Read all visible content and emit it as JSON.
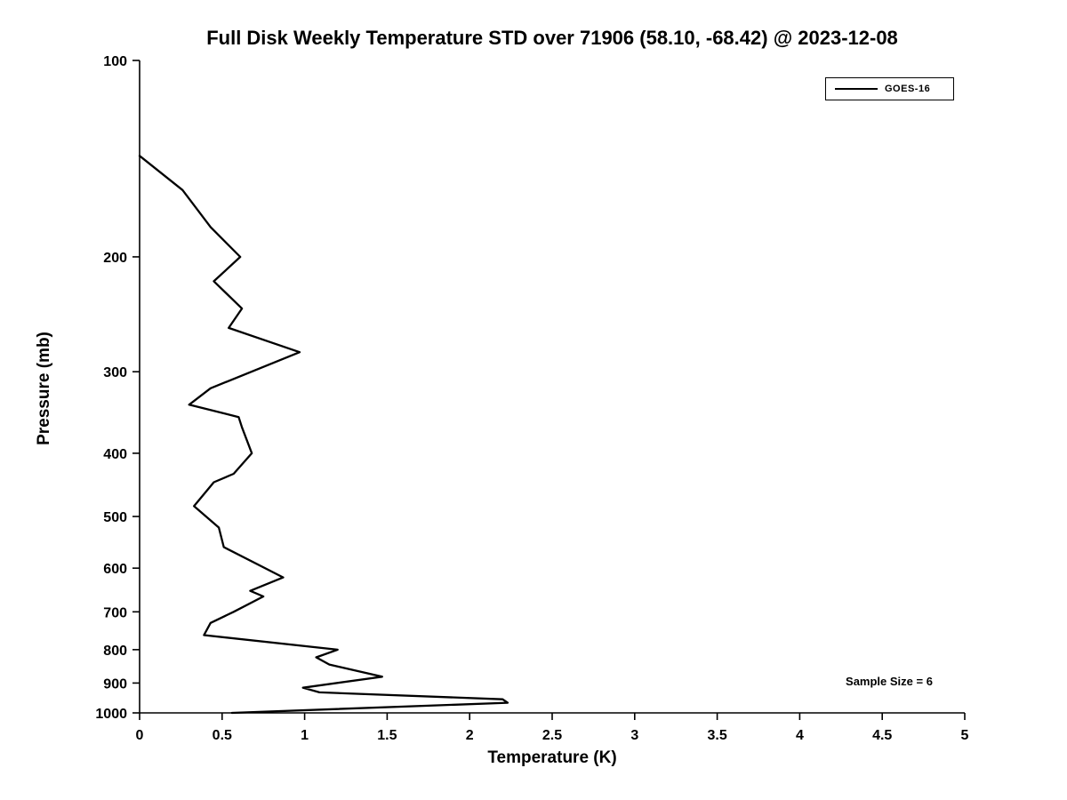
{
  "chart_data": {
    "type": "line",
    "title": "Full Disk Weekly Temperature STD over 71906 (58.10, -68.42) @ 2023-12-08",
    "xlabel": "Temperature (K)",
    "ylabel": "Pressure (mb)",
    "xlim": [
      0,
      5
    ],
    "ylim": [
      100,
      1000
    ],
    "yscale": "log",
    "y_inverted": true,
    "grid": false,
    "xticks": [
      "0",
      "0.5",
      "1",
      "1.5",
      "2",
      "2.5",
      "3",
      "3.5",
      "4",
      "4.5",
      "5"
    ],
    "yticks": [
      "100",
      "200",
      "300",
      "400",
      "500",
      "600",
      "700",
      "800",
      "900",
      "1000"
    ],
    "annotation": "Sample Size = 6",
    "legend_position": "top-right",
    "legend": [
      {
        "name": "GOES-16",
        "color": "#000000"
      }
    ],
    "series": [
      {
        "name": "GOES-16",
        "color": "#000000",
        "points_format": "[temperature_K, pressure_mb]",
        "points": [
          [
            0.0,
            140
          ],
          [
            0.26,
            158
          ],
          [
            0.43,
            180
          ],
          [
            0.61,
            200
          ],
          [
            0.45,
            218
          ],
          [
            0.62,
            240
          ],
          [
            0.54,
            257
          ],
          [
            0.97,
            280
          ],
          [
            0.43,
            318
          ],
          [
            0.3,
            337
          ],
          [
            0.6,
            352
          ],
          [
            0.62,
            365
          ],
          [
            0.68,
            400
          ],
          [
            0.57,
            430
          ],
          [
            0.45,
            443
          ],
          [
            0.33,
            482
          ],
          [
            0.48,
            520
          ],
          [
            0.51,
            557
          ],
          [
            0.87,
            620
          ],
          [
            0.67,
            650
          ],
          [
            0.75,
            663
          ],
          [
            0.57,
            700
          ],
          [
            0.43,
            728
          ],
          [
            0.39,
            760
          ],
          [
            1.2,
            800
          ],
          [
            1.07,
            822
          ],
          [
            1.15,
            843
          ],
          [
            1.47,
            880
          ],
          [
            0.99,
            915
          ],
          [
            1.09,
            930
          ],
          [
            2.2,
            953
          ],
          [
            2.23,
            965
          ],
          [
            0.56,
            1000
          ]
        ]
      }
    ]
  }
}
